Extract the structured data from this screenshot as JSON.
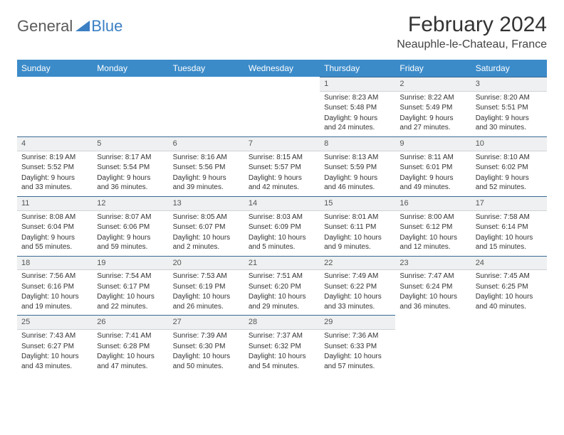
{
  "brand": {
    "word1": "General",
    "word2": "Blue"
  },
  "title": "February 2024",
  "location": "Neauphle-le-Chateau, France",
  "colors": {
    "header_bg": "#3b8bc9",
    "header_text": "#ffffff",
    "daynum_bg": "#eef0f1",
    "daynum_border_top": "#3b6a95",
    "logo_blue": "#3b7fc4",
    "logo_gray": "#5a5a5a"
  },
  "weekdays": [
    "Sunday",
    "Monday",
    "Tuesday",
    "Wednesday",
    "Thursday",
    "Friday",
    "Saturday"
  ],
  "weeks": [
    [
      {
        "empty": true
      },
      {
        "empty": true
      },
      {
        "empty": true
      },
      {
        "empty": true
      },
      {
        "n": "1",
        "sunrise": "Sunrise: 8:23 AM",
        "sunset": "Sunset: 5:48 PM",
        "day": "Daylight: 9 hours and 24 minutes."
      },
      {
        "n": "2",
        "sunrise": "Sunrise: 8:22 AM",
        "sunset": "Sunset: 5:49 PM",
        "day": "Daylight: 9 hours and 27 minutes."
      },
      {
        "n": "3",
        "sunrise": "Sunrise: 8:20 AM",
        "sunset": "Sunset: 5:51 PM",
        "day": "Daylight: 9 hours and 30 minutes."
      }
    ],
    [
      {
        "n": "4",
        "sunrise": "Sunrise: 8:19 AM",
        "sunset": "Sunset: 5:52 PM",
        "day": "Daylight: 9 hours and 33 minutes."
      },
      {
        "n": "5",
        "sunrise": "Sunrise: 8:17 AM",
        "sunset": "Sunset: 5:54 PM",
        "day": "Daylight: 9 hours and 36 minutes."
      },
      {
        "n": "6",
        "sunrise": "Sunrise: 8:16 AM",
        "sunset": "Sunset: 5:56 PM",
        "day": "Daylight: 9 hours and 39 minutes."
      },
      {
        "n": "7",
        "sunrise": "Sunrise: 8:15 AM",
        "sunset": "Sunset: 5:57 PM",
        "day": "Daylight: 9 hours and 42 minutes."
      },
      {
        "n": "8",
        "sunrise": "Sunrise: 8:13 AM",
        "sunset": "Sunset: 5:59 PM",
        "day": "Daylight: 9 hours and 46 minutes."
      },
      {
        "n": "9",
        "sunrise": "Sunrise: 8:11 AM",
        "sunset": "Sunset: 6:01 PM",
        "day": "Daylight: 9 hours and 49 minutes."
      },
      {
        "n": "10",
        "sunrise": "Sunrise: 8:10 AM",
        "sunset": "Sunset: 6:02 PM",
        "day": "Daylight: 9 hours and 52 minutes."
      }
    ],
    [
      {
        "n": "11",
        "sunrise": "Sunrise: 8:08 AM",
        "sunset": "Sunset: 6:04 PM",
        "day": "Daylight: 9 hours and 55 minutes."
      },
      {
        "n": "12",
        "sunrise": "Sunrise: 8:07 AM",
        "sunset": "Sunset: 6:06 PM",
        "day": "Daylight: 9 hours and 59 minutes."
      },
      {
        "n": "13",
        "sunrise": "Sunrise: 8:05 AM",
        "sunset": "Sunset: 6:07 PM",
        "day": "Daylight: 10 hours and 2 minutes."
      },
      {
        "n": "14",
        "sunrise": "Sunrise: 8:03 AM",
        "sunset": "Sunset: 6:09 PM",
        "day": "Daylight: 10 hours and 5 minutes."
      },
      {
        "n": "15",
        "sunrise": "Sunrise: 8:01 AM",
        "sunset": "Sunset: 6:11 PM",
        "day": "Daylight: 10 hours and 9 minutes."
      },
      {
        "n": "16",
        "sunrise": "Sunrise: 8:00 AM",
        "sunset": "Sunset: 6:12 PM",
        "day": "Daylight: 10 hours and 12 minutes."
      },
      {
        "n": "17",
        "sunrise": "Sunrise: 7:58 AM",
        "sunset": "Sunset: 6:14 PM",
        "day": "Daylight: 10 hours and 15 minutes."
      }
    ],
    [
      {
        "n": "18",
        "sunrise": "Sunrise: 7:56 AM",
        "sunset": "Sunset: 6:16 PM",
        "day": "Daylight: 10 hours and 19 minutes."
      },
      {
        "n": "19",
        "sunrise": "Sunrise: 7:54 AM",
        "sunset": "Sunset: 6:17 PM",
        "day": "Daylight: 10 hours and 22 minutes."
      },
      {
        "n": "20",
        "sunrise": "Sunrise: 7:53 AM",
        "sunset": "Sunset: 6:19 PM",
        "day": "Daylight: 10 hours and 26 minutes."
      },
      {
        "n": "21",
        "sunrise": "Sunrise: 7:51 AM",
        "sunset": "Sunset: 6:20 PM",
        "day": "Daylight: 10 hours and 29 minutes."
      },
      {
        "n": "22",
        "sunrise": "Sunrise: 7:49 AM",
        "sunset": "Sunset: 6:22 PM",
        "day": "Daylight: 10 hours and 33 minutes."
      },
      {
        "n": "23",
        "sunrise": "Sunrise: 7:47 AM",
        "sunset": "Sunset: 6:24 PM",
        "day": "Daylight: 10 hours and 36 minutes."
      },
      {
        "n": "24",
        "sunrise": "Sunrise: 7:45 AM",
        "sunset": "Sunset: 6:25 PM",
        "day": "Daylight: 10 hours and 40 minutes."
      }
    ],
    [
      {
        "n": "25",
        "sunrise": "Sunrise: 7:43 AM",
        "sunset": "Sunset: 6:27 PM",
        "day": "Daylight: 10 hours and 43 minutes."
      },
      {
        "n": "26",
        "sunrise": "Sunrise: 7:41 AM",
        "sunset": "Sunset: 6:28 PM",
        "day": "Daylight: 10 hours and 47 minutes."
      },
      {
        "n": "27",
        "sunrise": "Sunrise: 7:39 AM",
        "sunset": "Sunset: 6:30 PM",
        "day": "Daylight: 10 hours and 50 minutes."
      },
      {
        "n": "28",
        "sunrise": "Sunrise: 7:37 AM",
        "sunset": "Sunset: 6:32 PM",
        "day": "Daylight: 10 hours and 54 minutes."
      },
      {
        "n": "29",
        "sunrise": "Sunrise: 7:36 AM",
        "sunset": "Sunset: 6:33 PM",
        "day": "Daylight: 10 hours and 57 minutes."
      },
      {
        "empty": true
      },
      {
        "empty": true
      }
    ]
  ]
}
